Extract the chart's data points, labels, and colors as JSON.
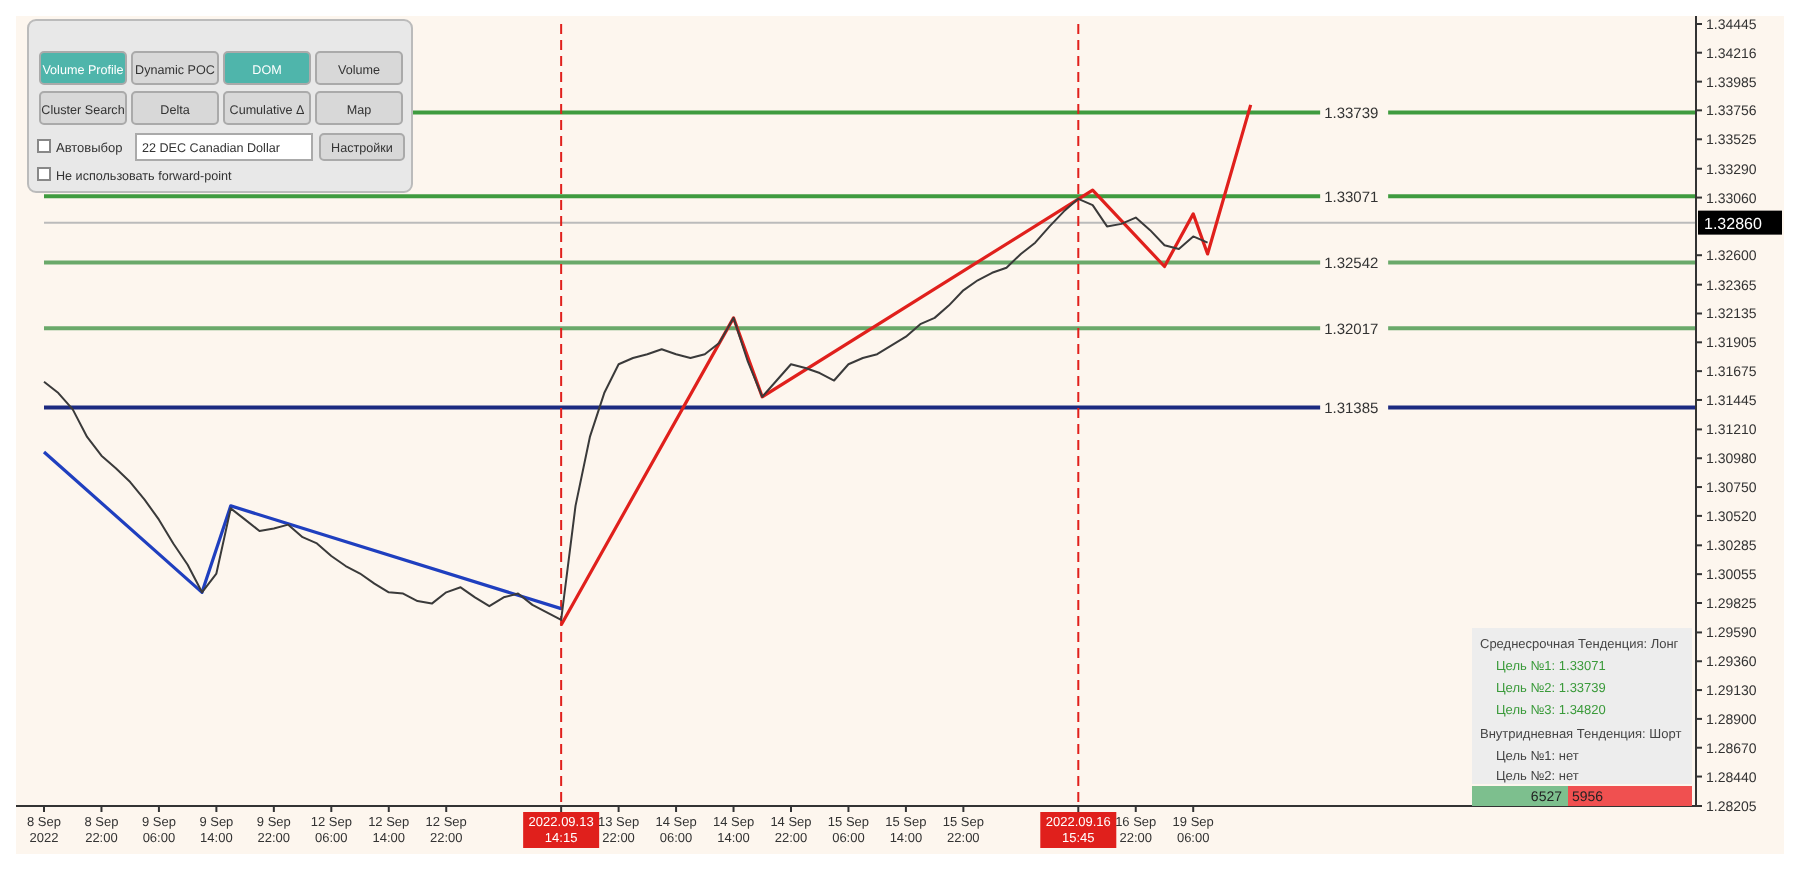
{
  "chart_data": {
    "type": "line",
    "ylim": [
      1.28205,
      1.34445
    ],
    "categories": [
      "8 Sep 2022",
      null,
      null,
      null,
      "8 Sep 22:00",
      null,
      null,
      null,
      "9 Sep 06:00",
      null,
      null,
      null,
      "9 Sep 14:00",
      null,
      null,
      null,
      "9 Sep 22:00",
      null,
      null,
      null,
      "12 Sep 06:00",
      null,
      null,
      null,
      "12 Sep 14:00",
      null,
      null,
      null,
      "12 Sep 22:00",
      null,
      null,
      null,
      null,
      null,
      null,
      null,
      "2022.09.13 14:15",
      null,
      null,
      null,
      "13 Sep 22:00",
      null,
      null,
      null,
      "14 Sep 06:00",
      null,
      null,
      null,
      "14 Sep 14:00",
      null,
      null,
      null,
      "14 Sep 22:00",
      null,
      null,
      null,
      "15 Sep 06:00",
      null,
      null,
      null,
      "15 Sep 14:00",
      null,
      null,
      null,
      "15 Sep 22:00",
      null,
      null,
      null,
      null,
      null,
      null,
      null,
      "2022.09.16 15:45",
      null,
      null,
      null,
      "16 Sep 22:00",
      null,
      null,
      null,
      "19 Sep 06:00",
      null,
      null,
      null,
      null,
      null,
      null,
      null,
      null,
      null,
      null,
      null,
      null,
      null,
      null,
      null,
      null,
      null,
      null,
      null,
      null,
      null,
      null,
      null,
      null,
      null,
      null,
      null,
      null,
      null,
      null,
      null,
      null,
      null,
      null,
      null
    ],
    "yticks": [
      {
        "value": 1.28205,
        "label": "1.28205"
      },
      {
        "value": 1.2844,
        "label": "1.28440"
      },
      {
        "value": 1.2867,
        "label": "1.28670"
      },
      {
        "value": 1.289,
        "label": "1.28900"
      },
      {
        "value": 1.2913,
        "label": "1.29130"
      },
      {
        "value": 1.2936,
        "label": "1.29360"
      },
      {
        "value": 1.2959,
        "label": "1.29590"
      },
      {
        "value": 1.29825,
        "label": "1.29825"
      },
      {
        "value": 1.30055,
        "label": "1.30055"
      },
      {
        "value": 1.30285,
        "label": "1.30285"
      },
      {
        "value": 1.3052,
        "label": "1.30520"
      },
      {
        "value": 1.3075,
        "label": "1.30750"
      },
      {
        "value": 1.3098,
        "label": "1.30980"
      },
      {
        "value": 1.3121,
        "label": "1.31210"
      },
      {
        "value": 1.31445,
        "label": "1.31445"
      },
      {
        "value": 1.31675,
        "label": "1.31675"
      },
      {
        "value": 1.31905,
        "label": "1.31905"
      },
      {
        "value": 1.32135,
        "label": "1.32135"
      },
      {
        "value": 1.32365,
        "label": "1.32365"
      },
      {
        "value": 1.326,
        "label": "1.32600"
      },
      {
        "value": 1.3306,
        "label": "1.33060"
      },
      {
        "value": 1.3329,
        "label": "1.33290"
      },
      {
        "value": 1.33525,
        "label": "1.33525"
      },
      {
        "value": 1.33756,
        "label": "1.33756"
      },
      {
        "value": 1.33985,
        "label": "1.33985"
      },
      {
        "value": 1.34216,
        "label": "1.34216"
      },
      {
        "value": 1.34445,
        "label": "1.34445"
      }
    ],
    "series": [
      {
        "color": "#3a3a3a",
        "values": [
          1.3159,
          1.315,
          1.3137,
          1.3115,
          1.31,
          1.309,
          1.3079,
          1.3065,
          1.3049,
          1.303,
          1.3013,
          1.2991,
          1.3006,
          1.3058,
          1.3049,
          1.304,
          1.3042,
          1.3045,
          1.3035,
          1.303,
          1.302,
          1.3012,
          1.3006,
          1.2998,
          1.2991,
          1.299,
          1.2984,
          1.2982,
          1.2991,
          1.2995,
          1.2987,
          1.298,
          1.2987,
          1.299,
          1.2981,
          1.2975,
          1.2969,
          1.306,
          1.3115,
          1.315,
          1.3173,
          1.3178,
          1.3181,
          1.3185,
          1.3181,
          1.3178,
          1.3181,
          1.319,
          1.321,
          1.3175,
          1.3147,
          1.316,
          1.3173,
          1.317,
          1.3166,
          1.316,
          1.3173,
          1.3178,
          1.3181,
          1.3188,
          1.3195,
          1.3205,
          1.321,
          1.322,
          1.3232,
          1.324,
          1.3246,
          1.325,
          1.3261,
          1.327,
          1.3283,
          1.3295,
          1.3305,
          1.33,
          1.3283,
          1.3285,
          1.329,
          1.328,
          1.3268,
          1.3265,
          1.3275,
          1.327,
          null,
          null,
          null,
          null,
          null,
          null,
          null,
          null,
          null,
          null,
          null,
          null,
          null,
          null,
          null,
          null,
          null,
          null,
          null,
          null,
          null,
          null,
          null,
          null,
          null,
          null,
          null,
          null,
          null,
          null,
          null,
          null,
          null,
          null
        ]
      },
      {
        "color": "#e0201c",
        "values": [
          null,
          null,
          null,
          null,
          null,
          null,
          null,
          null,
          null,
          null,
          null,
          null,
          null,
          null,
          null,
          null,
          null,
          null,
          null,
          null,
          null,
          null,
          null,
          null,
          null,
          null,
          null,
          null,
          null,
          null,
          null,
          null,
          null,
          null,
          null,
          null,
          1.2965,
          null,
          null,
          null,
          null,
          null,
          null,
          null,
          null,
          null,
          null,
          null,
          1.321,
          null,
          1.3147,
          null,
          null,
          null,
          null,
          null,
          null,
          null,
          null,
          null,
          null,
          null,
          null,
          null,
          null,
          null,
          null,
          null,
          null,
          null,
          null,
          null,
          null,
          1.3312,
          null,
          null,
          null,
          null,
          1.3251,
          null,
          1.3293,
          1.3261,
          null,
          null,
          1.338,
          null,
          null,
          null,
          null,
          null,
          null,
          null,
          null,
          null,
          null,
          null,
          null,
          null,
          null,
          null,
          null,
          null,
          null,
          null,
          null,
          null,
          null,
          null,
          null,
          null,
          null,
          null,
          null,
          null,
          null,
          null
        ]
      },
      {
        "color": "#1f3fbf",
        "values": [
          1.3103,
          null,
          null,
          null,
          null,
          null,
          null,
          null,
          null,
          null,
          null,
          1.2991,
          null,
          1.306,
          null,
          null,
          null,
          null,
          null,
          null,
          null,
          null,
          null,
          null,
          null,
          null,
          null,
          null,
          null,
          null,
          null,
          null,
          null,
          null,
          null,
          null,
          1.2978,
          null,
          null,
          null,
          null,
          null,
          null,
          null,
          null,
          null,
          null,
          null,
          null,
          null,
          null,
          null,
          null,
          null,
          null,
          null,
          null,
          null,
          null,
          null,
          null,
          null,
          null,
          null,
          null,
          null,
          null,
          null,
          null,
          null,
          null,
          null,
          null,
          null,
          null,
          null,
          null,
          null,
          null,
          null,
          null,
          null,
          null,
          null,
          null,
          null,
          null,
          null,
          null,
          null,
          null,
          null,
          null,
          null,
          null,
          null,
          null,
          null,
          null,
          null,
          null,
          null,
          null,
          null,
          null,
          null,
          null,
          null,
          null,
          null,
          null,
          null,
          null,
          null,
          null,
          null
        ]
      }
    ],
    "marker": "none",
    "line_style": "solid",
    "grid": false,
    "ref_lines": [
      {
        "axis": "y",
        "value": 1.33739,
        "label": "1.33739",
        "color": "#3f9b3f"
      },
      {
        "axis": "y",
        "value": 1.33071,
        "label": "1.33071",
        "color": "#3f9b3f"
      },
      {
        "axis": "y",
        "value": 1.32542,
        "label": "1.32542",
        "color": "#6aa96a"
      },
      {
        "axis": "y",
        "value": 1.32017,
        "label": "1.32017",
        "color": "#6aa96a"
      },
      {
        "axis": "y",
        "value": 1.31385,
        "label": "1.31385",
        "color": "#1c2a80"
      },
      {
        "axis": "y",
        "value": 1.3286,
        "label": "1.32860",
        "color": "#bbbbbb"
      },
      {
        "axis": "x",
        "value": "2022.09.13 14:15",
        "color": "#e0201c",
        "line_style": "dashed"
      },
      {
        "axis": "x",
        "value": "2022.09.16 15:45",
        "color": "#e0201c",
        "line_style": "dashed"
      }
    ],
    "annotations": [
      "Среднесрочная Тенденция: Лонг",
      "Цель №1: 1.33071",
      "Цель №2: 1.33739",
      "Цель №3: 1.34820",
      "Внутридневная Тенденция: Шорт",
      "Цель №1: нет",
      "Цель №2: нет",
      "6527",
      "5956",
      "Volume Profile",
      "Dynamic POC",
      "DOM",
      "Volume",
      "Cluster Search",
      "Delta",
      "Cumulative Δ",
      "Map",
      "Автовыбор",
      "22 DEC Canadian Dollar",
      "Настройки",
      "Не использовать forward-point"
    ]
  }
}
